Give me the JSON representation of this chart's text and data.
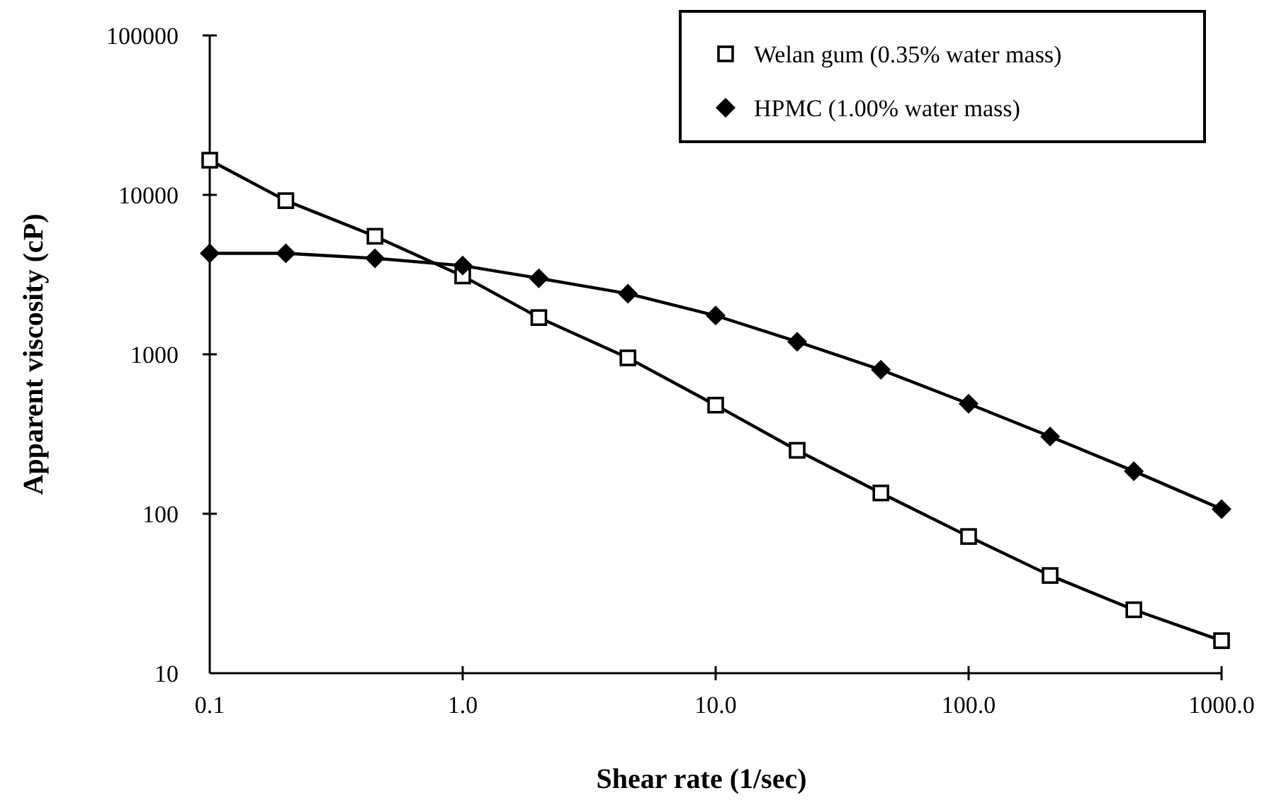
{
  "chart_data": {
    "type": "line",
    "xlabel": "Shear rate (1/sec)",
    "ylabel": "Apparent viscosity (cP)",
    "log": "xy",
    "xlim": [
      0.1,
      1000
    ],
    "xticks": [
      {
        "value": 0.1,
        "label": "0.1"
      },
      {
        "value": 1,
        "label": "1.0"
      },
      {
        "value": 10,
        "label": "10.0"
      },
      {
        "value": 100,
        "label": "100.0"
      },
      {
        "value": 1000,
        "label": "1000.0"
      }
    ],
    "ylim": [
      10,
      100000
    ],
    "yticks": [
      10,
      100,
      1000,
      10000,
      100000
    ],
    "grid": false,
    "legend": "top right",
    "line_style": "solid",
    "x": [
      0.1,
      0.2,
      0.45,
      1,
      2,
      4.5,
      10,
      21,
      45,
      100,
      210,
      450,
      1000
    ],
    "series": [
      {
        "name": "Welan gum (0.35% water mass)",
        "color": "#000000",
        "marker": "square",
        "values": [
          16500,
          9200,
          5500,
          3100,
          1700,
          950,
          480,
          250,
          135,
          72,
          41,
          25,
          16
        ]
      },
      {
        "name": "HPMC (1.00% water mass)",
        "color": "#000000",
        "marker": "diamond",
        "values": [
          4300,
          4300,
          4000,
          3600,
          3000,
          2400,
          1750,
          1200,
          800,
          490,
          305,
          185,
          107
        ]
      }
    ]
  }
}
